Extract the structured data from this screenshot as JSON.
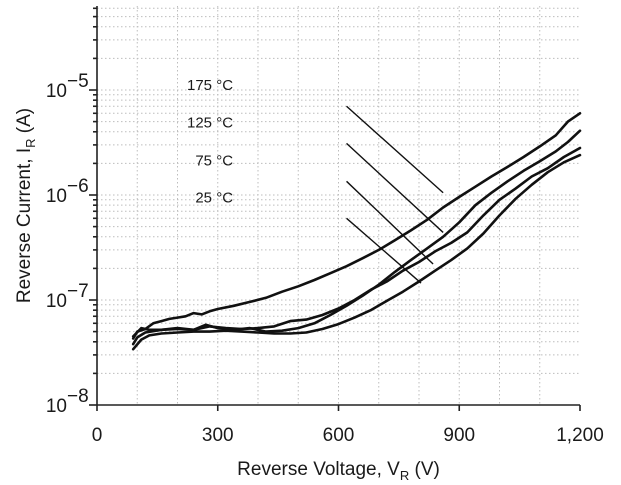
{
  "chart_data": {
    "type": "line",
    "xlabel": "Reverse Voltage, V",
    "xlabel_sub": "R",
    "xlabel_unit": " (V)",
    "ylabel": "Reverse Current, I",
    "ylabel_sub": "R",
    "ylabel_unit": " (A)",
    "xlim": [
      0,
      1200
    ],
    "ylim_log10": [
      -8,
      -4.2
    ],
    "y_scale": "log",
    "grid": true,
    "x_ticks": [
      {
        "value": 0,
        "label": "0"
      },
      {
        "value": 300,
        "label": "300"
      },
      {
        "value": 600,
        "label": "600"
      },
      {
        "value": 900,
        "label": "900"
      },
      {
        "value": 1200,
        "label": "1,200"
      }
    ],
    "y_ticks": [
      {
        "exp": -8,
        "base": "10",
        "sup": "−8"
      },
      {
        "exp": -7,
        "base": "10",
        "sup": "−7"
      },
      {
        "exp": -6,
        "base": "10",
        "sup": "−6"
      },
      {
        "exp": -5,
        "base": "10",
        "sup": "−5"
      }
    ],
    "series": [
      {
        "name": "175 °C",
        "x": [
          90,
          100,
          120,
          140,
          160,
          180,
          200,
          220,
          240,
          260,
          280,
          300,
          340,
          380,
          420,
          460,
          500,
          540,
          580,
          620,
          660,
          700,
          740,
          780,
          820,
          860,
          900,
          940,
          980,
          1020,
          1060,
          1100,
          1140,
          1170,
          1200
        ],
        "y": [
          4.3e-08,
          5e-08,
          5.3e-08,
          6e-08,
          6.3e-08,
          6.6e-08,
          6.8e-08,
          7e-08,
          7.5e-08,
          7.3e-08,
          7.8e-08,
          8.2e-08,
          8.8e-08,
          9.6e-08,
          1.05e-07,
          1.2e-07,
          1.35e-07,
          1.55e-07,
          1.8e-07,
          2.1e-07,
          2.5e-07,
          3e-07,
          3.7e-07,
          4.6e-07,
          5.8e-07,
          7.6e-07,
          9.6e-07,
          1.2e-06,
          1.5e-06,
          1.85e-06,
          2.3e-06,
          2.9e-06,
          3.7e-06,
          5e-06,
          6e-06
        ]
      },
      {
        "name": "125 °C",
        "x": [
          90,
          110,
          130,
          160,
          200,
          240,
          270,
          300,
          340,
          380,
          420,
          460,
          500,
          540,
          580,
          620,
          660,
          700,
          740,
          780,
          820,
          860,
          900,
          940,
          980,
          1020,
          1060,
          1100,
          1140,
          1170,
          1200
        ],
        "y": [
          4.5e-08,
          5.4e-08,
          5.2e-08,
          5.2e-08,
          5.3e-08,
          5.2e-08,
          5.8e-08,
          5.4e-08,
          5.2e-08,
          5.4e-08,
          5e-08,
          5.1e-08,
          5.4e-08,
          6e-08,
          7.2e-08,
          8.8e-08,
          1.1e-07,
          1.4e-07,
          1.85e-07,
          2.4e-07,
          3.1e-07,
          4e-07,
          5.5e-07,
          8e-07,
          1.05e-06,
          1.35e-06,
          1.7e-06,
          2.1e-06,
          2.6e-06,
          3.2e-06,
          4.1e-06
        ]
      },
      {
        "name": "75 °C",
        "x": [
          90,
          100,
          120,
          160,
          200,
          240,
          280,
          320,
          360,
          400,
          440,
          480,
          520,
          560,
          600,
          640,
          680,
          720,
          760,
          800,
          840,
          880,
          920,
          960,
          1000,
          1040,
          1080,
          1120,
          1160,
          1200
        ],
        "y": [
          3.8e-08,
          4.4e-08,
          4.9e-08,
          5.2e-08,
          5.4e-08,
          5.2e-08,
          5.6e-08,
          5.4e-08,
          5.3e-08,
          5.4e-08,
          5.6e-08,
          6.3e-08,
          6.5e-08,
          7.2e-08,
          8.3e-08,
          1e-07,
          1.25e-07,
          1.5e-07,
          1.9e-07,
          2.3e-07,
          2.9e-07,
          3.5e-07,
          4.4e-07,
          6.4e-07,
          9e-07,
          1.15e-06,
          1.5e-06,
          1.8e-06,
          2.3e-06,
          2.8e-06
        ]
      },
      {
        "name": "25 °C",
        "x": [
          90,
          110,
          130,
          160,
          200,
          240,
          280,
          320,
          360,
          400,
          440,
          480,
          520,
          560,
          600,
          640,
          680,
          720,
          760,
          800,
          840,
          880,
          920,
          960,
          1000,
          1040,
          1080,
          1120,
          1160,
          1200
        ],
        "y": [
          3.4e-08,
          4.2e-08,
          4.6e-08,
          4.8e-08,
          4.9e-08,
          5e-08,
          5e-08,
          5.1e-08,
          5e-08,
          4.9e-08,
          4.8e-08,
          4.8e-08,
          4.9e-08,
          5.3e-08,
          5.9e-08,
          6.8e-08,
          8e-08,
          9.8e-08,
          1.2e-07,
          1.5e-07,
          1.9e-07,
          2.4e-07,
          3.1e-07,
          4.3e-07,
          6.4e-07,
          9.2e-07,
          1.25e-06,
          1.65e-06,
          2.05e-06,
          2.4e-06
        ]
      }
    ],
    "annotations": [
      {
        "text": "175 °C",
        "label_x": 338,
        "label_y": 1e-05,
        "line_start": [
          620,
          7e-06
        ],
        "line_end": [
          860,
          1.05e-06
        ]
      },
      {
        "text": "125 °C",
        "label_x": 338,
        "label_y": 4.4e-06,
        "line_start": [
          620,
          3.1e-06
        ],
        "line_end": [
          860,
          4.4e-07
        ]
      },
      {
        "text": "75 °C",
        "label_x": 338,
        "label_y": 1.9e-06,
        "line_start": [
          620,
          1.35e-06
        ],
        "line_end": [
          835,
          2.2e-07
        ]
      },
      {
        "text": "25 °C",
        "label_x": 338,
        "label_y": 8.5e-07,
        "line_start": [
          620,
          6e-07
        ],
        "line_end": [
          805,
          1.45e-07
        ]
      }
    ]
  }
}
